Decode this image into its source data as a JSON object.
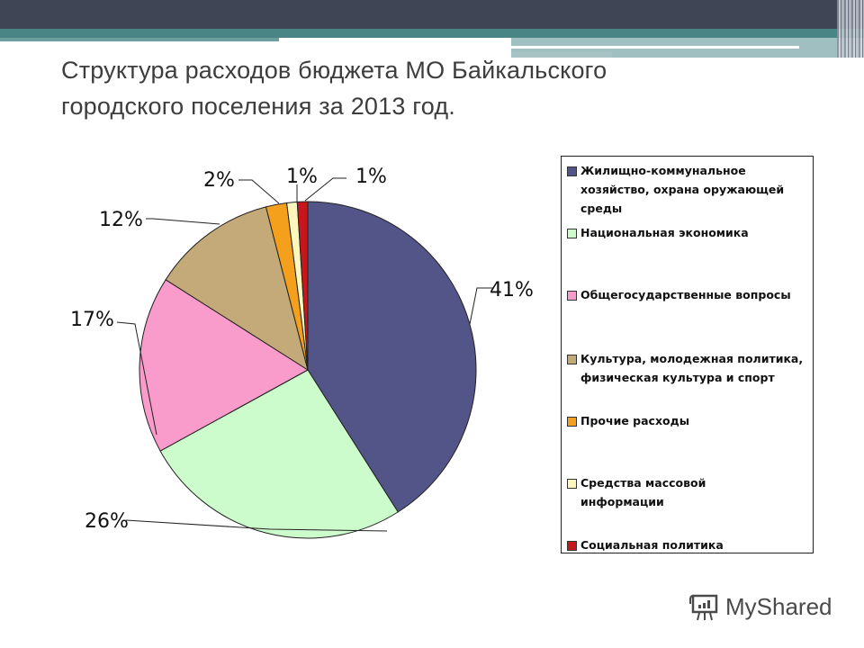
{
  "slide": {
    "title_line1": "Структура расходов бюджета МО Байкальского",
    "title_line2": "городского поселения за 2013 год."
  },
  "chart_data": {
    "type": "pie",
    "title": "Структура расходов бюджета МО Байкальского городского поселения за 2013 год.",
    "categories": [
      "Жилищно-коммунальное хозяйство, охрана оружающей среды",
      "Национальная экономика",
      "Общегосударственные вопросы",
      "Культура, молодежная политика, физическая культура и спорт",
      "Прочие расходы",
      "Средства массовой информации",
      "Социальная политика"
    ],
    "values": [
      41,
      26,
      17,
      12,
      2,
      1,
      1
    ],
    "labels": [
      "41%",
      "26%",
      "17%",
      "12%",
      "2%",
      "1%",
      "1%"
    ],
    "colors": [
      "#535588",
      "#ccfccc",
      "#f99ccb",
      "#c4aa78",
      "#f5a01c",
      "#fdf7be",
      "#c8171c"
    ],
    "legend_position": "right",
    "start_angle": "12 o'clock, clockwise"
  },
  "legend": {
    "items": [
      {
        "label": "Жилищно-коммунальное хозяйство, охрана оружающей среды",
        "color": "#535588"
      },
      {
        "label": "Национальная экономика",
        "color": "#ccfccc"
      },
      {
        "label": "Общегосударственные вопросы",
        "color": "#f99ccb"
      },
      {
        "label": "Культура, молодежная политика, физическая культура и спорт",
        "color": "#c4aa78"
      },
      {
        "label": "Прочие расходы",
        "color": "#f5a01c"
      },
      {
        "label": "Средства массовой информации",
        "color": "#fdf7be"
      },
      {
        "label": "Социальная политика",
        "color": "#c8171c"
      }
    ]
  },
  "watermark": {
    "text": "MyShared",
    "icon": "presentation-board-icon"
  }
}
